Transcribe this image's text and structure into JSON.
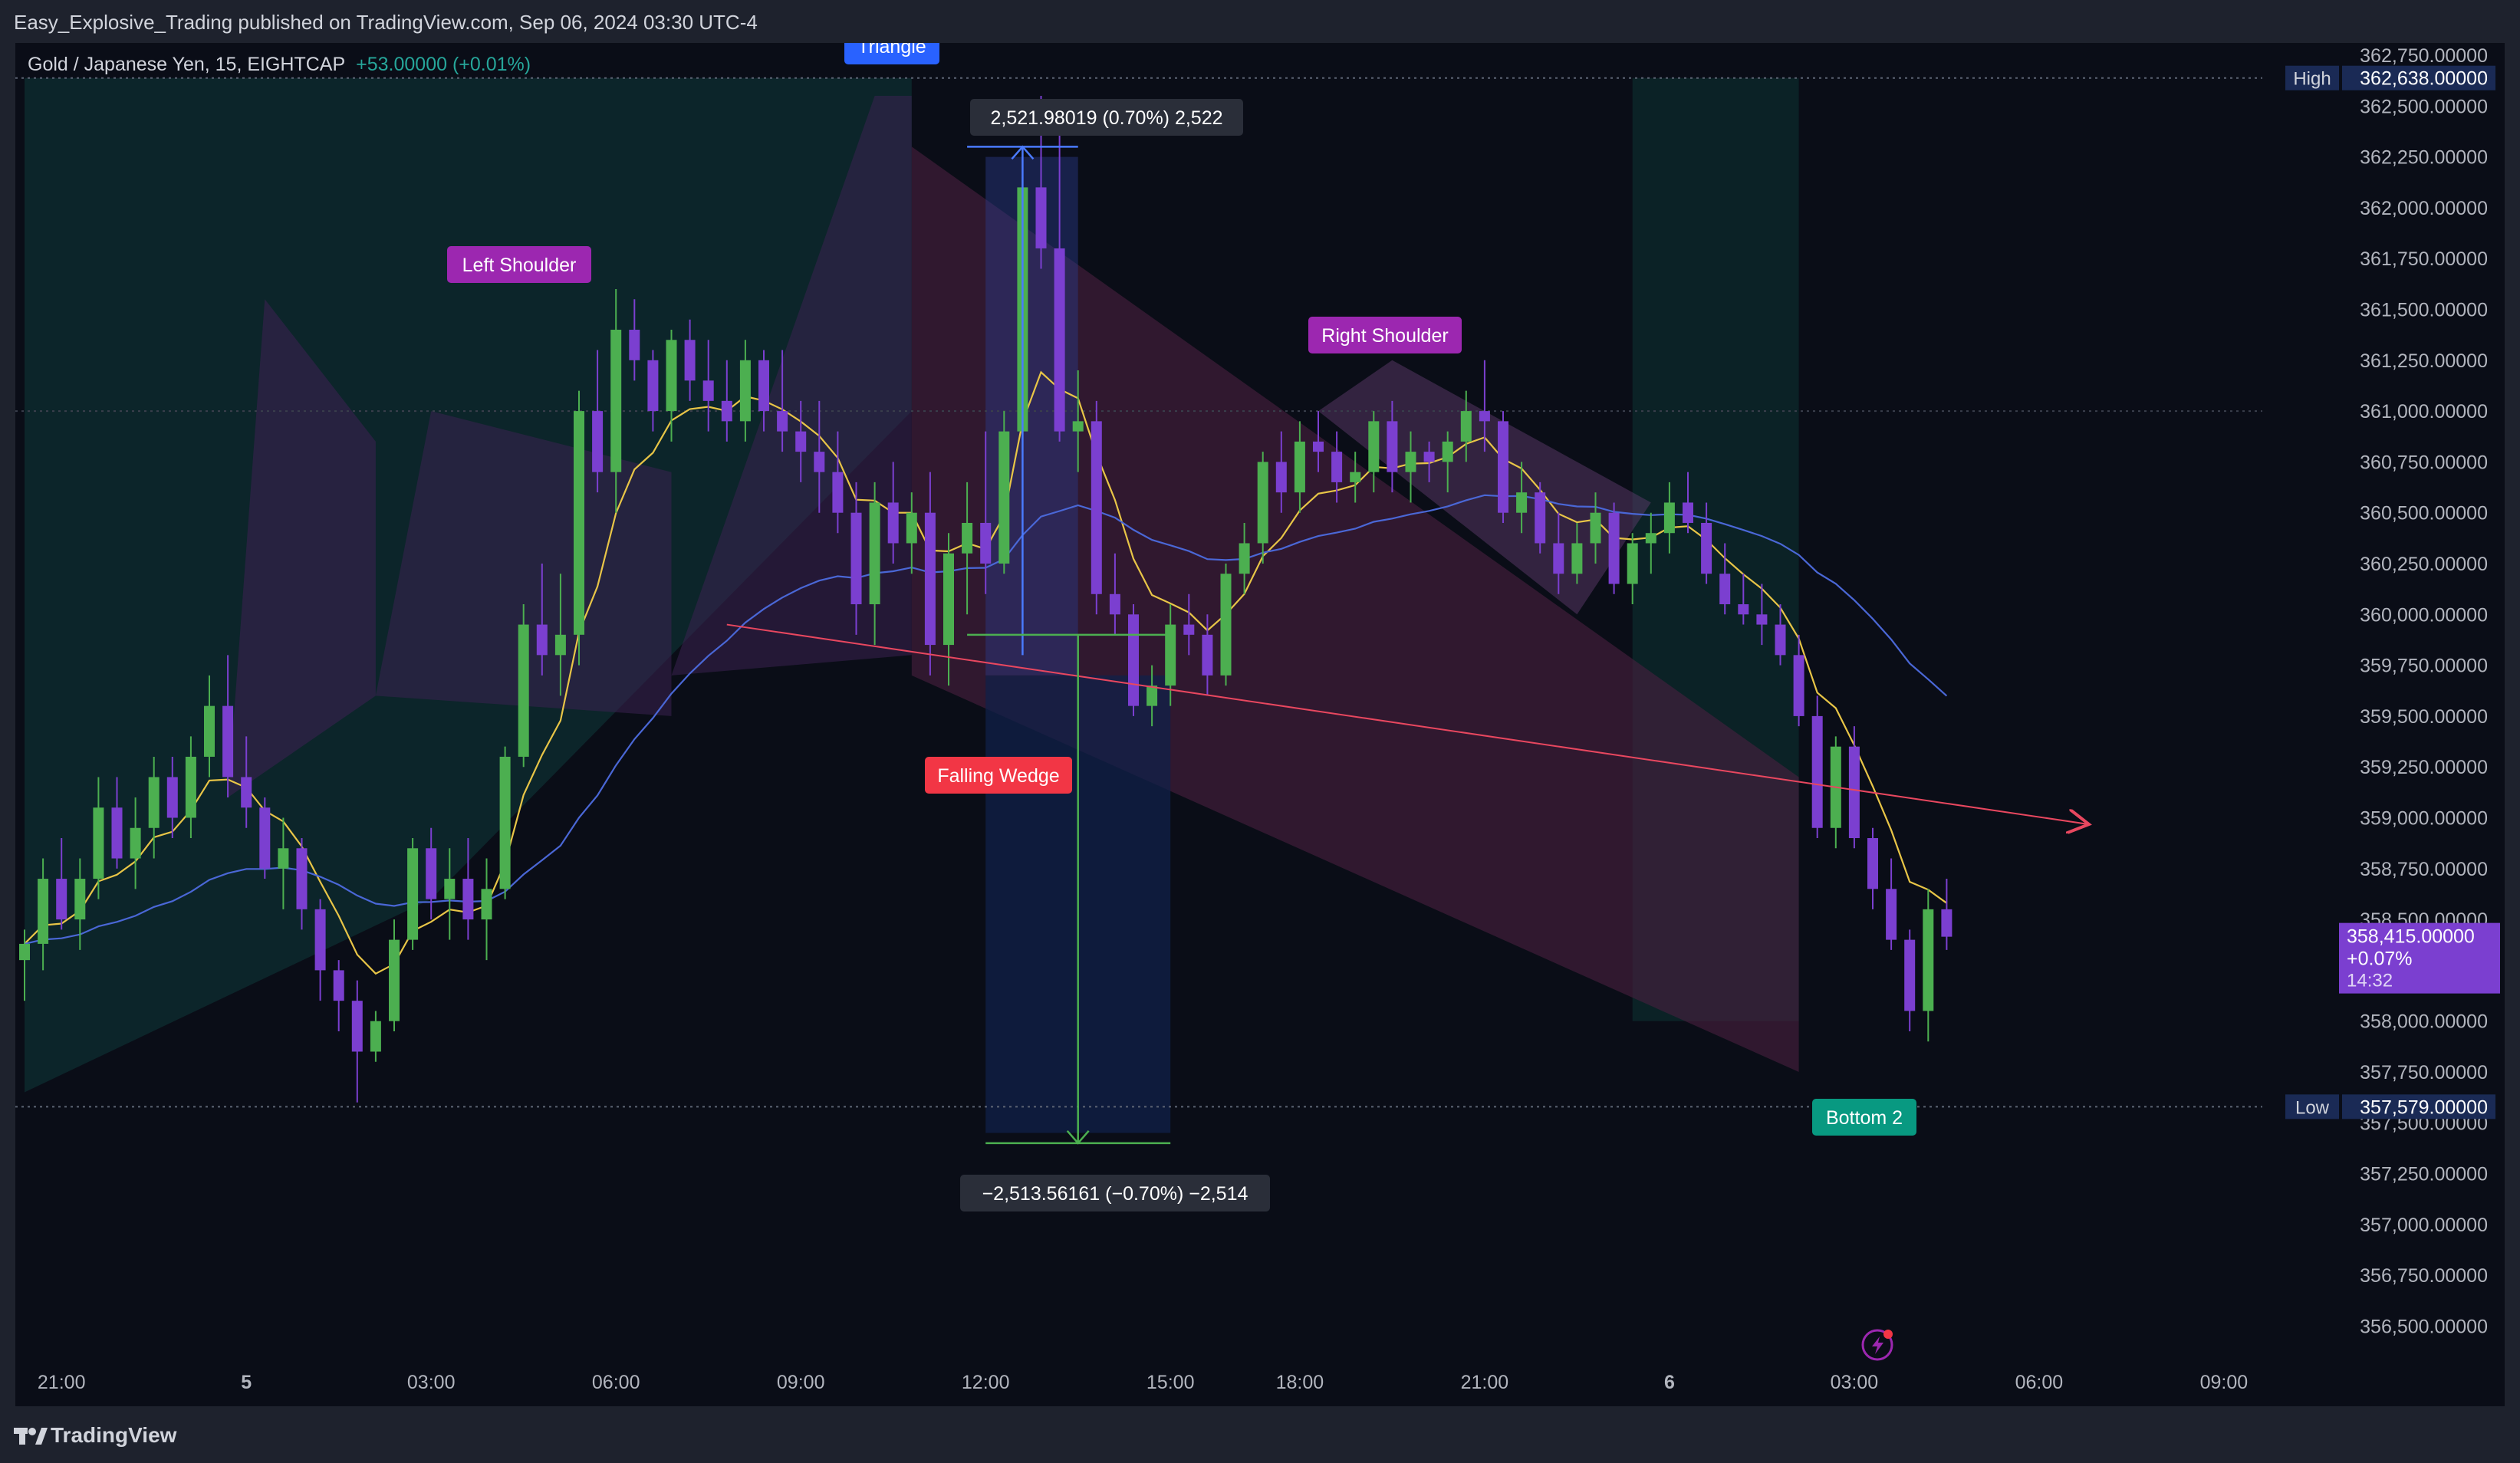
{
  "publisher_line": "Easy_Explosive_Trading published on TradingView.com, Sep 06, 2024 03:30 UTC-4",
  "symbol": {
    "name": "Gold / Japanese Yen, 15, EIGHTCAP",
    "change": "+53.00000 (+0.01%)"
  },
  "brand": "TradingView",
  "colors": {
    "bull": "#4caf50",
    "bear": "#7b3fd0",
    "ema_fast": "#e8c547",
    "ema_slow": "#4a67d6",
    "trendline": "#e8475f",
    "label_purple": "#9c27b0",
    "label_red": "#f23645",
    "label_green": "#089981",
    "label_blue": "#2962ff"
  },
  "chart_data": {
    "type": "candlestick",
    "symbol": "XAUJPY",
    "timeframe": "15",
    "y_range": [
      356300,
      362800
    ],
    "price_ticks": [
      "362,750.00000",
      "362,500.00000",
      "362,250.00000",
      "362,000.00000",
      "361,750.00000",
      "361,500.00000",
      "361,250.00000",
      "361,000.00000",
      "360,750.00000",
      "360,500.00000",
      "360,250.00000",
      "360,000.00000",
      "359,750.00000",
      "359,500.00000",
      "359,250.00000",
      "359,000.00000",
      "358,750.00000",
      "358,500.00000",
      "358,250.00000",
      "358,000.00000",
      "357,750.00000",
      "357,500.00000",
      "357,250.00000",
      "357,000.00000",
      "356,750.00000",
      "356,500.00000"
    ],
    "time_ticks": [
      {
        "label": "21:00",
        "slot": 2
      },
      {
        "label": "5",
        "slot": 12
      },
      {
        "label": "03:00",
        "slot": 22
      },
      {
        "label": "06:00",
        "slot": 32
      },
      {
        "label": "09:00",
        "slot": 42
      },
      {
        "label": "12:00",
        "slot": 52
      },
      {
        "label": "15:00",
        "slot": 62
      },
      {
        "label": "18:00",
        "slot": 69
      },
      {
        "label": "21:00",
        "slot": 79
      },
      {
        "label": "6",
        "slot": 89
      },
      {
        "label": "03:00",
        "slot": 99
      },
      {
        "label": "06:00",
        "slot": 109
      },
      {
        "label": "09:00",
        "slot": 119
      }
    ],
    "candles": [
      [
        358300,
        358450,
        358100,
        358380
      ],
      [
        358380,
        358800,
        358250,
        358700
      ],
      [
        358700,
        358900,
        358450,
        358500
      ],
      [
        358500,
        358800,
        358350,
        358700
      ],
      [
        358700,
        359200,
        358600,
        359050
      ],
      [
        359050,
        359200,
        358750,
        358800
      ],
      [
        358800,
        359100,
        358650,
        358950
      ],
      [
        358950,
        359300,
        358800,
        359200
      ],
      [
        359200,
        359300,
        358900,
        359000
      ],
      [
        359000,
        359400,
        358900,
        359300
      ],
      [
        359300,
        359700,
        359200,
        359550
      ],
      [
        359550,
        359800,
        359100,
        359200
      ],
      [
        359200,
        359400,
        358950,
        359050
      ],
      [
        359050,
        359100,
        358700,
        358750
      ],
      [
        358750,
        359000,
        358550,
        358850
      ],
      [
        358850,
        358900,
        358450,
        358550
      ],
      [
        358550,
        358600,
        358100,
        358250
      ],
      [
        358250,
        358300,
        357950,
        358100
      ],
      [
        358100,
        358200,
        357600,
        357850
      ],
      [
        357850,
        358050,
        357800,
        358000
      ],
      [
        358000,
        358500,
        357950,
        358400
      ],
      [
        358400,
        358900,
        358350,
        358850
      ],
      [
        358850,
        358950,
        358500,
        358600
      ],
      [
        358600,
        358850,
        358400,
        358700
      ],
      [
        358700,
        358900,
        358400,
        358500
      ],
      [
        358500,
        358800,
        358300,
        358650
      ],
      [
        358650,
        359350,
        358600,
        359300
      ],
      [
        359300,
        360050,
        359250,
        359950
      ],
      [
        359950,
        360250,
        359700,
        359800
      ],
      [
        359800,
        360200,
        359600,
        359900
      ],
      [
        359900,
        361100,
        359750,
        361000
      ],
      [
        361000,
        361300,
        360600,
        360700
      ],
      [
        360700,
        361600,
        360500,
        361400
      ],
      [
        361400,
        361550,
        361150,
        361250
      ],
      [
        361250,
        361300,
        360900,
        361000
      ],
      [
        361000,
        361400,
        360850,
        361350
      ],
      [
        361350,
        361450,
        361050,
        361150
      ],
      [
        361150,
        361350,
        360900,
        361050
      ],
      [
        361050,
        361250,
        360850,
        360950
      ],
      [
        360950,
        361350,
        360850,
        361250
      ],
      [
        361250,
        361300,
        360900,
        361000
      ],
      [
        361000,
        361300,
        360800,
        360900
      ],
      [
        360900,
        361050,
        360650,
        360800
      ],
      [
        360800,
        361050,
        360500,
        360700
      ],
      [
        360700,
        360900,
        360400,
        360500
      ],
      [
        360500,
        360650,
        359900,
        360050
      ],
      [
        360050,
        360650,
        359850,
        360550
      ],
      [
        360550,
        360750,
        360250,
        360350
      ],
      [
        360350,
        360600,
        360200,
        360500
      ],
      [
        360500,
        360700,
        359700,
        359850
      ],
      [
        359850,
        360400,
        359650,
        360300
      ],
      [
        360300,
        360650,
        360000,
        360450
      ],
      [
        360450,
        360900,
        360100,
        360250
      ],
      [
        360250,
        361000,
        360200,
        360900
      ],
      [
        360900,
        362150,
        360800,
        362100
      ],
      [
        362100,
        362550,
        361700,
        361800
      ],
      [
        361800,
        362450,
        360850,
        360900
      ],
      [
        360900,
        361200,
        360700,
        360950
      ],
      [
        360950,
        361050,
        360000,
        360100
      ],
      [
        360100,
        360300,
        359900,
        360000
      ],
      [
        360000,
        360050,
        359500,
        359550
      ],
      [
        359550,
        359750,
        359450,
        359650
      ],
      [
        359650,
        360050,
        359550,
        359950
      ],
      [
        359950,
        360100,
        359800,
        359900
      ],
      [
        359900,
        360000,
        359600,
        359700
      ],
      [
        359700,
        360250,
        359650,
        360200
      ],
      [
        360200,
        360450,
        360100,
        360350
      ],
      [
        360350,
        360800,
        360250,
        360750
      ],
      [
        360750,
        360900,
        360500,
        360600
      ],
      [
        360600,
        360950,
        360500,
        360850
      ],
      [
        360850,
        361000,
        360700,
        360800
      ],
      [
        360800,
        360900,
        360550,
        360650
      ],
      [
        360650,
        360800,
        360550,
        360700
      ],
      [
        360700,
        361000,
        360600,
        360950
      ],
      [
        360950,
        361050,
        360600,
        360700
      ],
      [
        360700,
        360900,
        360550,
        360800
      ],
      [
        360800,
        360850,
        360650,
        360750
      ],
      [
        360750,
        360900,
        360600,
        360850
      ],
      [
        360850,
        361100,
        360750,
        361000
      ],
      [
        361000,
        361250,
        360800,
        360950
      ],
      [
        360950,
        361000,
        360450,
        360500
      ],
      [
        360500,
        360750,
        360400,
        360600
      ],
      [
        360600,
        360650,
        360300,
        360350
      ],
      [
        360350,
        360500,
        360100,
        360200
      ],
      [
        360200,
        360450,
        360150,
        360350
      ],
      [
        360350,
        360600,
        360250,
        360500
      ],
      [
        360500,
        360550,
        360100,
        360150
      ],
      [
        360150,
        360400,
        360050,
        360350
      ],
      [
        360350,
        360500,
        360200,
        360400
      ],
      [
        360400,
        360650,
        360300,
        360550
      ],
      [
        360550,
        360700,
        360400,
        360450
      ],
      [
        360450,
        360550,
        360150,
        360200
      ],
      [
        360200,
        360350,
        360000,
        360050
      ],
      [
        360050,
        360200,
        359950,
        360000
      ],
      [
        360000,
        360150,
        359850,
        359950
      ],
      [
        359950,
        360050,
        359750,
        359800
      ],
      [
        359800,
        359900,
        359450,
        359500
      ],
      [
        359500,
        359600,
        358900,
        358950
      ],
      [
        358950,
        359400,
        358850,
        359350
      ],
      [
        359350,
        359450,
        358850,
        358900
      ],
      [
        358900,
        358950,
        358550,
        358650
      ],
      [
        358650,
        358800,
        358350,
        358400
      ],
      [
        358400,
        358450,
        357950,
        358050
      ],
      [
        358050,
        358650,
        357900,
        358550
      ],
      [
        358550,
        358700,
        358350,
        358415
      ]
    ]
  },
  "labels": {
    "triangle": "Triangle",
    "left_shoulder": "Left Shoulder",
    "right_shoulder": "Right Shoulder",
    "falling_wedge": "Falling Wedge",
    "bottom_2": "Bottom 2",
    "measure_up": "2,521.98019 (0.70%) 2,522",
    "measure_down": "−2,513.56161 (−0.70%) −2,514"
  },
  "badges": {
    "high_label": "High",
    "high_value": "362,638.00000",
    "low_label": "Low",
    "low_value": "357,579.00000",
    "current_price": "358,415.00000",
    "current_change": "+0.07%",
    "countdown": "14:32"
  },
  "icons": {
    "logo": "tradingview-logo-icon",
    "replay": "lightning-icon"
  }
}
